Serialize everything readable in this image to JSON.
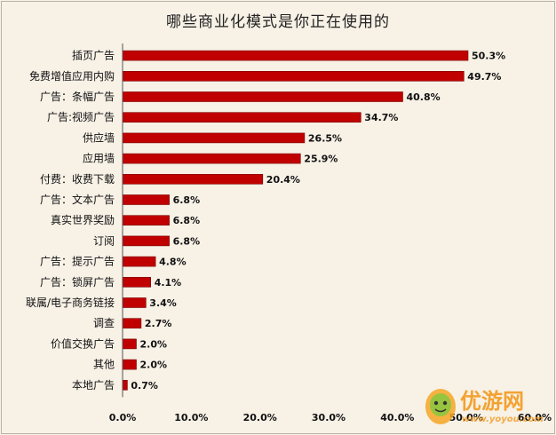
{
  "chart_data": {
    "type": "bar",
    "orientation": "horizontal",
    "title": "哪些商业化模式是你正在使用的",
    "categories": [
      "插页广告",
      "免费增值应用内购",
      "广告：条幅广告",
      "广告:视频广告",
      "供应墙",
      "应用墙",
      "付费：收费下载",
      "广告：文本广告",
      "真实世界奖励",
      "订阅",
      "广告：提示广告",
      "广告：锁屏广告",
      "联属/电子商务链接",
      "调查",
      "价值交换广告",
      "其他",
      "本地广告"
    ],
    "values": [
      50.3,
      49.7,
      40.8,
      34.7,
      26.5,
      25.9,
      20.4,
      6.8,
      6.8,
      6.8,
      4.8,
      4.1,
      3.4,
      2.7,
      2.0,
      2.0,
      0.7
    ],
    "value_labels": [
      "50.3%",
      "49.7%",
      "40.8%",
      "34.7%",
      "26.5%",
      "25.9%",
      "20.4%",
      "6.8%",
      "6.8%",
      "6.8%",
      "4.8%",
      "4.1%",
      "3.4%",
      "2.7%",
      "2.0%",
      "2.0%",
      "0.7%"
    ],
    "x_ticks": [
      "0.0%",
      "10.0%",
      "20.0%",
      "30.0%",
      "40.0%",
      "50.0%",
      "60.0%"
    ],
    "xlim": [
      0,
      60
    ],
    "grid": false,
    "legend": "none",
    "bar_color": "#c00000"
  },
  "watermark": {
    "logo_text": "优游网",
    "url_text": "www.yoyou.com"
  }
}
